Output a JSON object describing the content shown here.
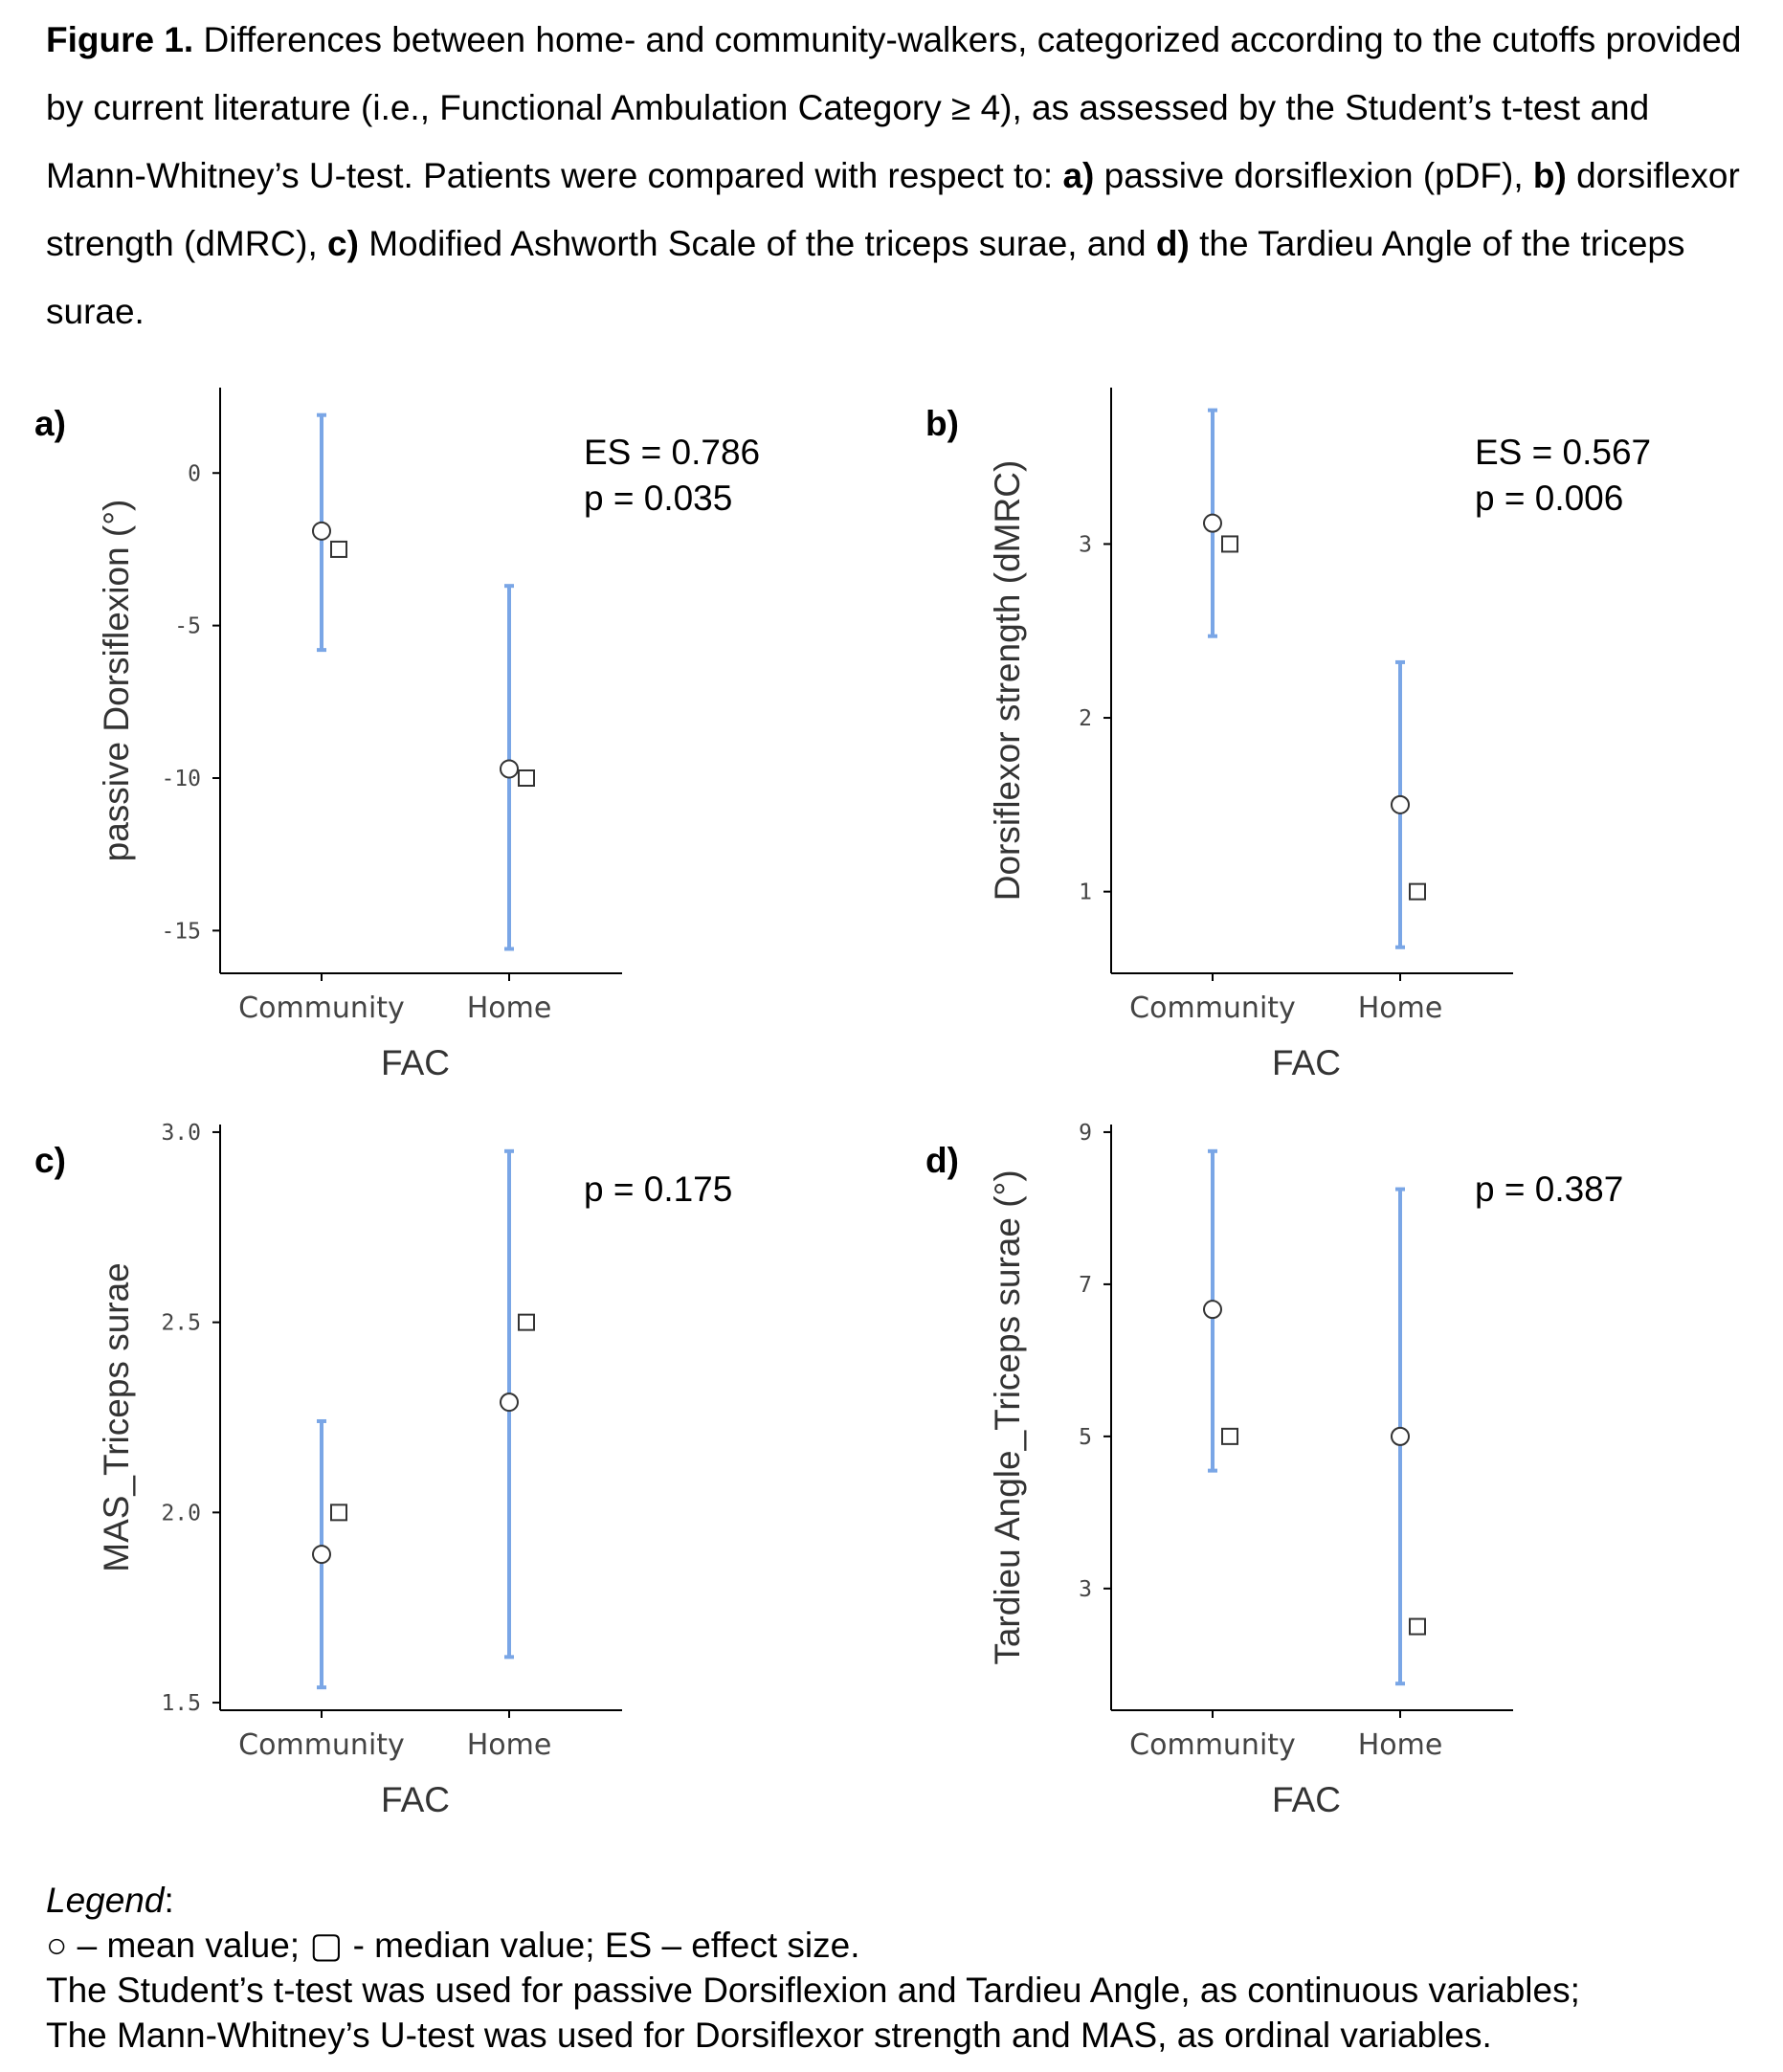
{
  "caption": {
    "lead": "Figure 1.",
    "part1": " Differences between home- and community-walkers, categorized according to the cutoffs provided by current literature (i.e., Functional Ambulation Category ≥ 4), as assessed by the Student’s t-test and Mann-Whitney’s U-test. Patients were compared with respect to: ",
    "a": "a)",
    "part2": " passive dorsiflexion (pDF), ",
    "b": "b)",
    "part3": " dorsiflexor strength (dMRC), ",
    "c": "c)",
    "part4": " Modified Ashworth Scale of the triceps surae, and ",
    "d": "d)",
    "part5": " the Tardieu Angle of the triceps surae."
  },
  "legend": {
    "title": "Legend",
    "title_suffix": ":",
    "line1": "○ – mean value; ▢ - median value; ES – effect size.",
    "line2": "The Student’s t-test was used for passive Dorsiflexion and Tardieu Angle, as continuous variables;",
    "line3": "The Mann-Whitney’s U-test was used for Dorsiflexor strength and MAS, as ordinal variables."
  },
  "colors": {
    "errorbar": "#7aa6e6",
    "axis": "#000000",
    "marker_fill": "#ffffff",
    "tick_text": "#444444"
  },
  "chart_data": [
    {
      "panel": "a)",
      "type": "errorbar",
      "xlabel": "FAC",
      "ylabel": "passive Dorsiflexion (°)",
      "categories": [
        "Community",
        "Home"
      ],
      "mean": [
        -1.9,
        -9.7
      ],
      "median": [
        -2.5,
        -10.0
      ],
      "ci_low": [
        -5.8,
        -15.6
      ],
      "ci_high": [
        1.9,
        -3.7
      ],
      "ylim": [
        -16.4,
        2.8
      ],
      "yticks": [
        0,
        -5,
        -10,
        -15
      ],
      "ytick_labels": [
        "0",
        "-5",
        "-10",
        "-15"
      ],
      "annotations": [
        "ES = 0.786",
        "p = 0.035"
      ],
      "grid": false
    },
    {
      "panel": "b)",
      "type": "errorbar",
      "xlabel": "FAC",
      "ylabel": "Dorsiflexor strength (dMRC)",
      "categories": [
        "Community",
        "Home"
      ],
      "mean": [
        3.12,
        1.5
      ],
      "median": [
        3.0,
        1.0
      ],
      "ci_low": [
        2.47,
        0.68
      ],
      "ci_high": [
        3.77,
        2.32
      ],
      "ylim": [
        0.53,
        3.9
      ],
      "yticks": [
        1,
        2,
        3
      ],
      "ytick_labels": [
        "1",
        "2",
        "3"
      ],
      "annotations": [
        "ES = 0.567",
        "p = 0.006"
      ],
      "grid": false
    },
    {
      "panel": "c)",
      "type": "errorbar",
      "xlabel": "FAC",
      "ylabel": "MAS_Triceps surae",
      "categories": [
        "Community",
        "Home"
      ],
      "mean": [
        1.89,
        2.29
      ],
      "median": [
        2.0,
        2.5
      ],
      "ci_low": [
        1.54,
        1.62
      ],
      "ci_high": [
        2.24,
        2.95
      ],
      "ylim": [
        1.48,
        3.02
      ],
      "yticks": [
        1.5,
        2.0,
        2.5,
        3.0
      ],
      "ytick_labels": [
        "1.5",
        "2.0",
        "2.5",
        "3.0"
      ],
      "annotations": [
        "p = 0.175"
      ],
      "grid": false
    },
    {
      "panel": "d)",
      "type": "errorbar",
      "xlabel": "FAC",
      "ylabel": "Tardieu Angle_Triceps surae (°)",
      "categories": [
        "Community",
        "Home"
      ],
      "mean": [
        6.67,
        5.0
      ],
      "median": [
        5.0,
        2.5
      ],
      "ci_low": [
        4.55,
        1.75
      ],
      "ci_high": [
        8.75,
        8.25
      ],
      "ylim": [
        1.4,
        9.1
      ],
      "yticks": [
        3,
        5,
        7,
        9
      ],
      "ytick_labels": [
        "3",
        "5",
        "7",
        "9"
      ],
      "annotations": [
        "p = 0.387"
      ],
      "grid": false
    }
  ]
}
